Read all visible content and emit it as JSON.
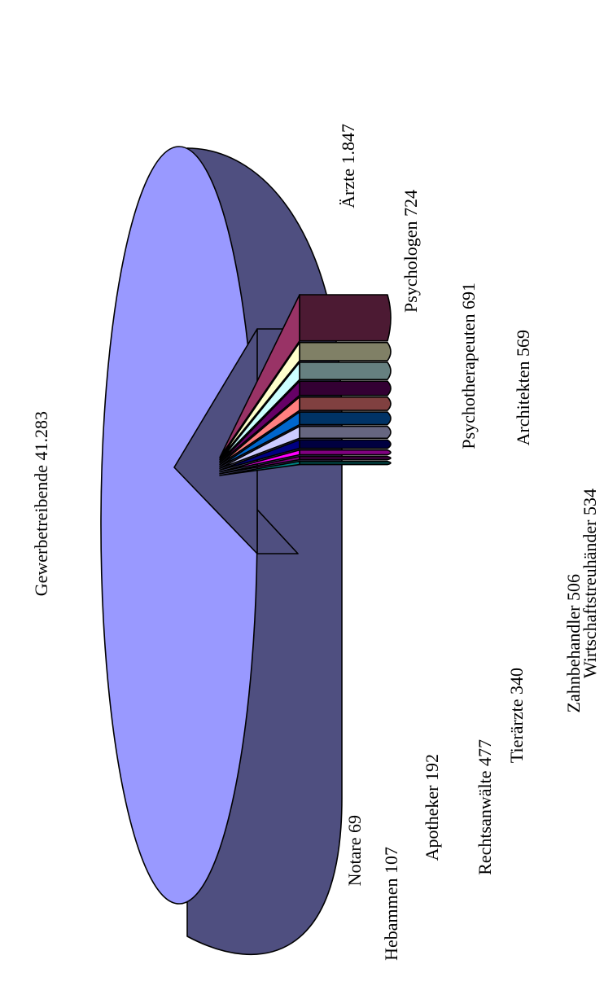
{
  "chart_data": {
    "type": "pie",
    "style": "3d-exploded-rotated",
    "slices": [
      {
        "label": "Gewerbetreibende",
        "value_text": "41.283",
        "value": 41283,
        "top_color": "#9999FF",
        "side_color": "#4F4F80"
      },
      {
        "label": "Ärzte",
        "value_text": "1.847",
        "value": 1847,
        "top_color": "#993366",
        "side_color": "#4C1A33"
      },
      {
        "label": "Psychologen",
        "value_text": "724",
        "value": 724,
        "top_color": "#FFFFCC",
        "side_color": "#808066"
      },
      {
        "label": "Psychotherapeuten",
        "value_text": "691",
        "value": 691,
        "top_color": "#CCFFFF",
        "side_color": "#668080"
      },
      {
        "label": "Architekten",
        "value_text": "569",
        "value": 569,
        "top_color": "#660066",
        "side_color": "#330033"
      },
      {
        "label": "Wirtschaftstreuhänder",
        "value_text": "534",
        "value": 534,
        "top_color": "#FF8080",
        "side_color": "#804040"
      },
      {
        "label": "Zahnbehandler",
        "value_text": "506",
        "value": 506,
        "top_color": "#0066CC",
        "side_color": "#003366"
      },
      {
        "label": "Rechtsanwälte",
        "value_text": "477",
        "value": 477,
        "top_color": "#CCCCFF",
        "side_color": "#666680"
      },
      {
        "label": "Tierärzte",
        "value_text": "340",
        "value": 340,
        "top_color": "#000080",
        "side_color": "#000040"
      },
      {
        "label": "Apotheker",
        "value_text": "192",
        "value": 192,
        "top_color": "#FF00FF",
        "side_color": "#800080"
      },
      {
        "label": "Hebammen",
        "value_text": "107",
        "value": 107,
        "top_color": "#800080",
        "side_color": "#400040"
      },
      {
        "label": "Notare",
        "value_text": "69",
        "value": 69,
        "top_color": "#008080",
        "side_color": "#004040"
      }
    ]
  }
}
